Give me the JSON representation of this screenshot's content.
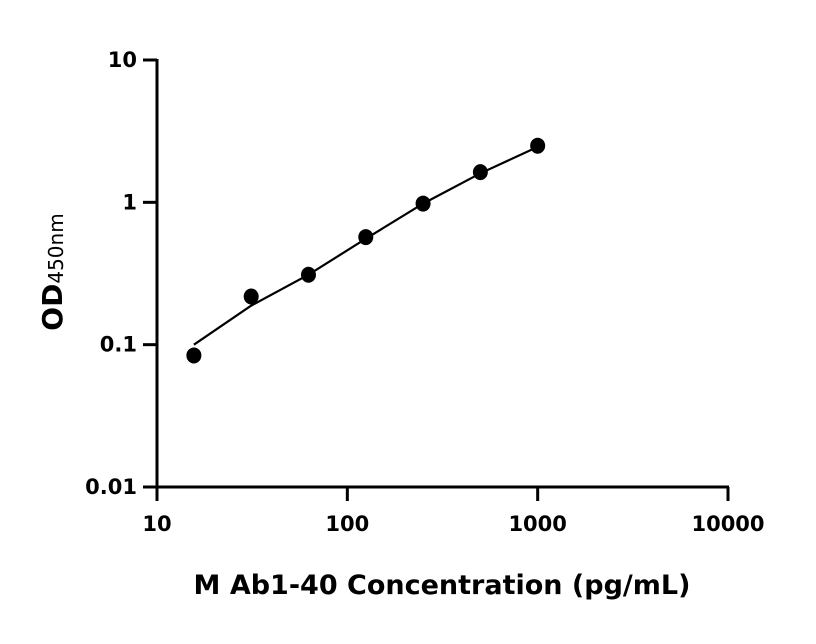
{
  "chart_data": {
    "type": "scatter",
    "xlabel": "M Ab1-40 Concentration (pg/mL)",
    "ylabel": "OD",
    "ylabel_subscript": "450nm",
    "xscale": "log",
    "yscale": "log",
    "xlim": [
      10,
      10000
    ],
    "ylim": [
      0.01,
      10
    ],
    "xticks": [
      10,
      100,
      1000,
      10000
    ],
    "xtick_labels": [
      "10",
      "100",
      "1000",
      "10000"
    ],
    "yticks": [
      0.01,
      0.1,
      1,
      10
    ],
    "ytick_labels": [
      "0.01",
      "0.1",
      "1",
      "10"
    ],
    "grid": false,
    "points": {
      "x": [
        15.625,
        31.25,
        62.5,
        125,
        250,
        500,
        1000
      ],
      "y": [
        0.084,
        0.218,
        0.31,
        0.57,
        0.98,
        1.63,
        2.5
      ]
    },
    "fit_curve": {
      "x": [
        15.625,
        31.25,
        62.5,
        125,
        250,
        500,
        1000
      ],
      "y": [
        0.1,
        0.188,
        0.31,
        0.555,
        0.98,
        1.6,
        2.45
      ]
    },
    "colors": {
      "points": "#000000",
      "curve": "#000000",
      "axes": "#000000"
    }
  }
}
